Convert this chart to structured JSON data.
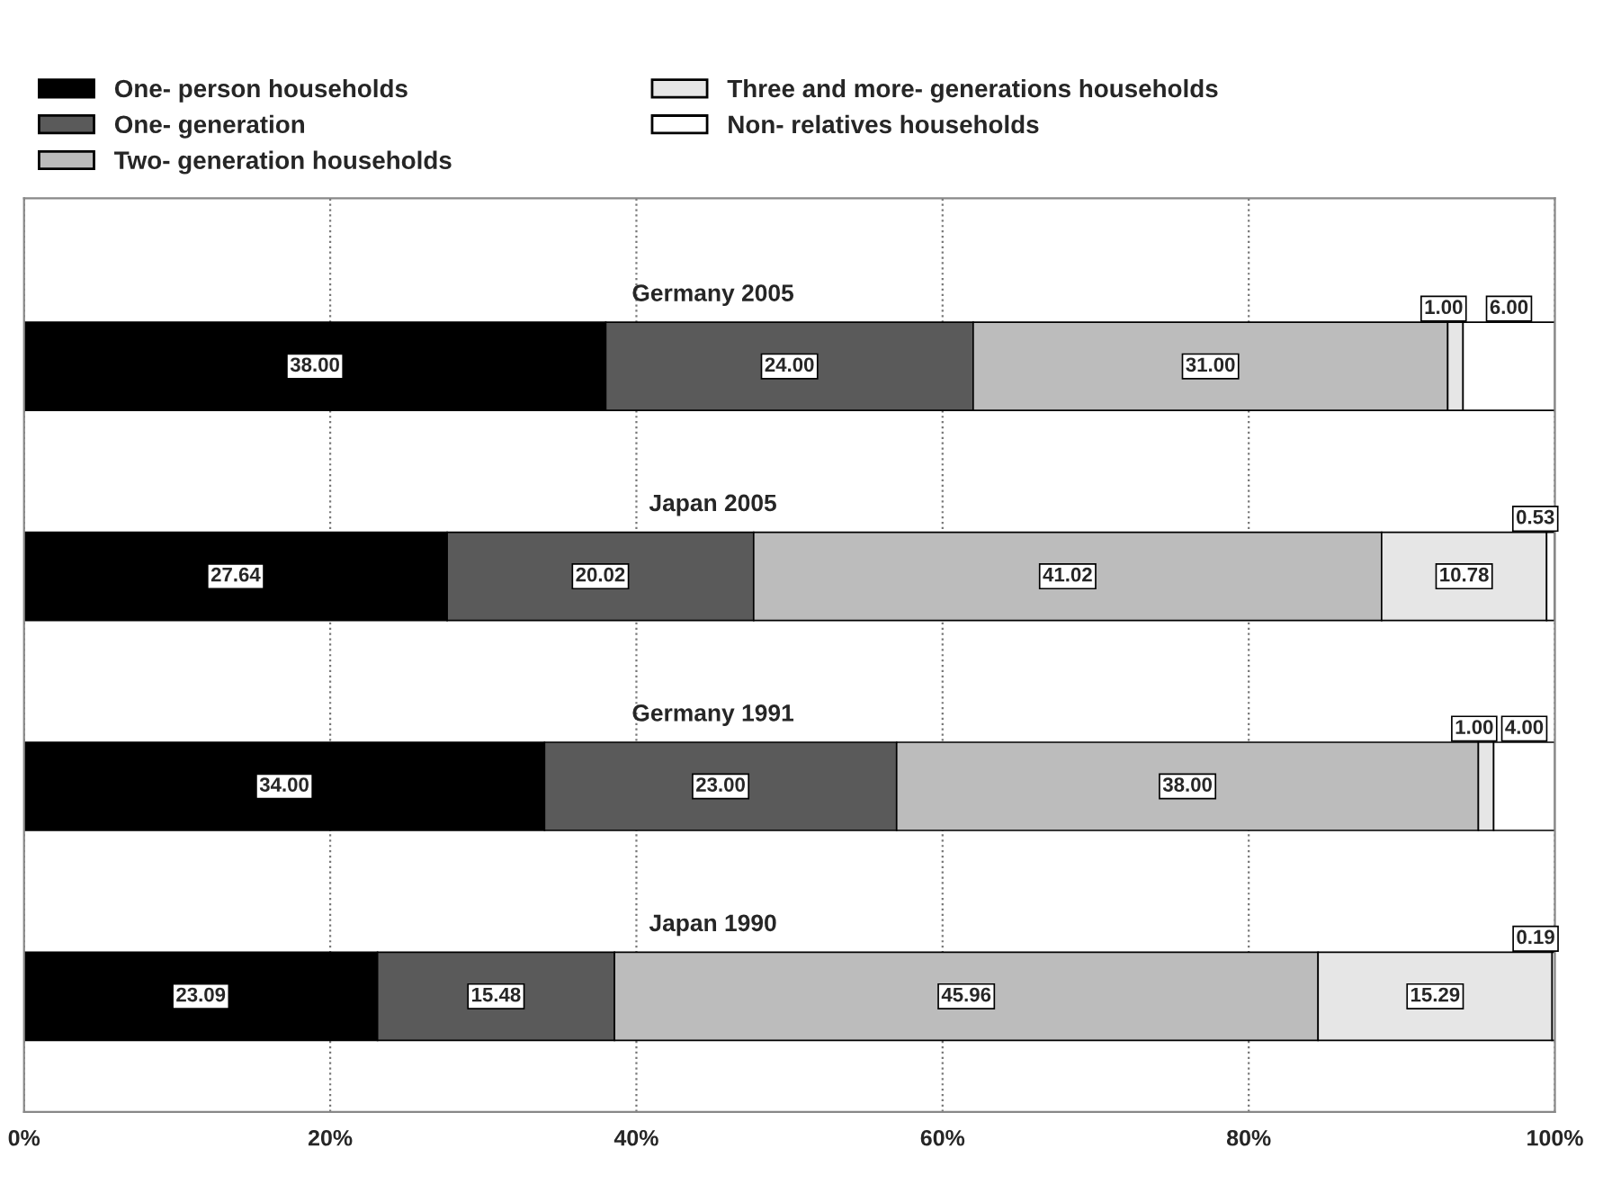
{
  "chart_data": {
    "type": "bar",
    "orientation": "horizontal",
    "stacked": true,
    "categories": [
      "Germany 2005",
      "Japan 2005",
      "Germany 1991",
      "Japan 1990"
    ],
    "series": [
      {
        "name": "One- person households",
        "color": "#000000",
        "values": [
          38.0,
          27.64,
          34.0,
          23.09
        ],
        "value_labels": [
          "38.00",
          "27.64",
          "34.00",
          "23.09"
        ]
      },
      {
        "name": "One- generation",
        "color": "#5a5a5a",
        "values": [
          24.0,
          20.02,
          23.0,
          15.48
        ],
        "value_labels": [
          "24.00",
          "20.02",
          "23.00",
          "15.48"
        ]
      },
      {
        "name": "Two- generation households",
        "color": "#bcbcbc",
        "values": [
          31.0,
          41.02,
          38.0,
          45.96
        ],
        "value_labels": [
          "31.00",
          "41.02",
          "38.00",
          "45.96"
        ]
      },
      {
        "name": "Three and more- generations households",
        "color": "#e6e6e6",
        "values": [
          1.0,
          10.78,
          1.0,
          15.29
        ],
        "value_labels": [
          "1.00",
          "10.78",
          "1.00",
          "15.29"
        ]
      },
      {
        "name": "Non- relatives households",
        "color": "#ffffff",
        "values": [
          6.0,
          0.53,
          4.0,
          0.19
        ],
        "value_labels": [
          "6.00",
          "0.53",
          "4.00",
          "0.19"
        ]
      }
    ],
    "xlim": [
      0,
      100
    ],
    "xticks": [
      {
        "value": 0,
        "label": "0%"
      },
      {
        "value": 20,
        "label": "20%"
      },
      {
        "value": 40,
        "label": "40%"
      },
      {
        "value": 60,
        "label": "60%"
      },
      {
        "value": 80,
        "label": "80%"
      },
      {
        "value": 100,
        "label": "100%"
      }
    ],
    "grid": "x",
    "legend": "top",
    "tick_labels": "x"
  }
}
